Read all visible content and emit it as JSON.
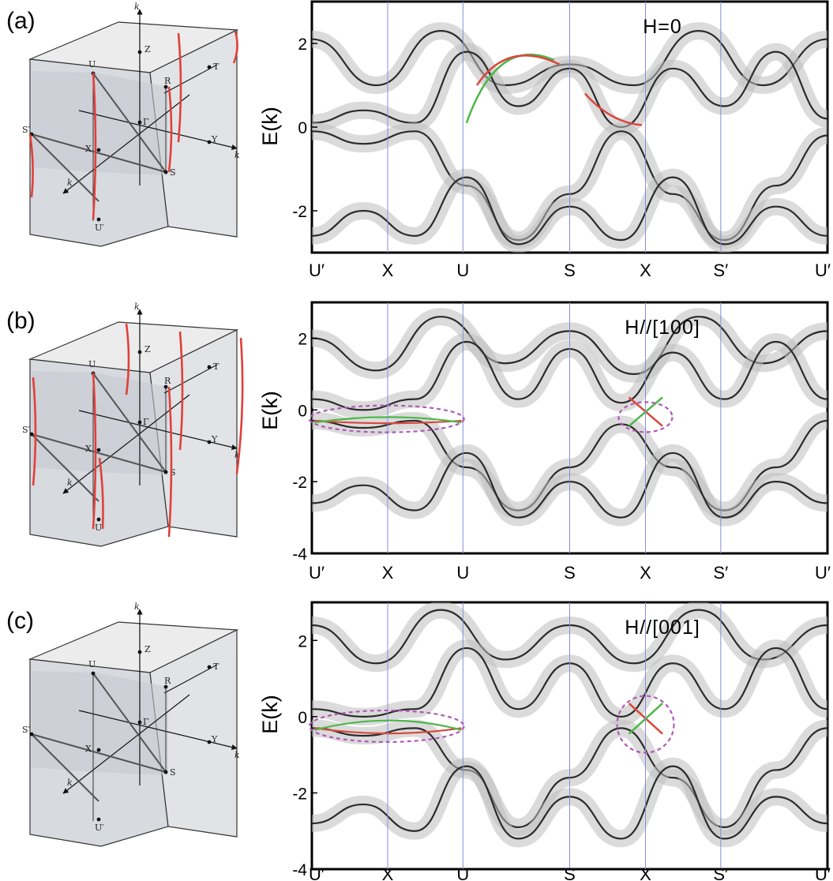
{
  "figure": {
    "kpath_labels": [
      "U′",
      "X",
      "U",
      "S",
      "X",
      "S′",
      "U′"
    ],
    "ylabel": "E(k)",
    "bz_points": {
      "kz": "k",
      "kz_sub": "z",
      "ky": "k",
      "ky_sub": "y",
      "kx": "k",
      "kx_sub": "x",
      "Z": "Z",
      "T": "T",
      "U": "U",
      "R": "R",
      "Gamma": "Γ",
      "Y": "Y",
      "Sp": "S′",
      "X": "X",
      "S": "S",
      "Up": "U′"
    },
    "colors": {
      "band": "#2b2b2b",
      "band_light": "#bdbdbd",
      "surface_red": "#d9473f",
      "surface_green": "#4cb848",
      "highlight_ellipse": "#b05ab8",
      "kline": "#8a8ad8",
      "fermi_red_line": "#e0403a"
    }
  },
  "panels": [
    {
      "id": "a",
      "label": "(a)",
      "field": "H=0",
      "y_ticks": [
        "2",
        "0",
        "-2"
      ],
      "chart_data": {
        "type": "line",
        "title": "H=0",
        "ylabel": "E(k)",
        "x_ticks": [
          "U′",
          "X",
          "U",
          "S",
          "X",
          "S′",
          "U′"
        ],
        "ylim": [
          -3,
          3
        ],
        "series": [
          {
            "values": [
              2.1,
              1.0,
              2.3,
              1.0,
              1.5,
              1.0,
              2.3,
              1.0,
              2.1
            ]
          },
          {
            "values": [
              0.1,
              0.4,
              0.1,
              1.8,
              0.5,
              1.4,
              0.0,
              1.4,
              0.5,
              1.8,
              0.2
            ]
          },
          {
            "values": [
              -0.1,
              -0.4,
              -0.1,
              -1.4,
              -2.7,
              -1.6,
              -0.1,
              -1.6,
              -2.7,
              -1.4,
              -0.2
            ]
          },
          {
            "values": [
              -2.6,
              -2.0,
              -2.6,
              -1.2,
              -2.8,
              -1.9,
              -2.7,
              -1.2,
              -2.8,
              -1.9,
              -2.6
            ]
          }
        ],
        "surface_states": [
          {
            "color": "red",
            "segment": "U–S"
          },
          {
            "color": "green",
            "segment": "S–X"
          }
        ]
      }
    },
    {
      "id": "b",
      "label": "(b)",
      "field": "H//[100]",
      "y_ticks": [
        "2",
        "0",
        "-2",
        "-4"
      ],
      "chart_data": {
        "type": "line",
        "title": "H//[100]",
        "ylabel": "E(k)",
        "x_ticks": [
          "U′",
          "X",
          "U",
          "S",
          "X",
          "S′",
          "U′"
        ],
        "ylim": [
          -4,
          3
        ],
        "series": [
          {
            "values": [
              2.0,
              1.1,
              2.6,
              1.3,
              2.2,
              1.0,
              2.6,
              1.3,
              2.2
            ]
          },
          {
            "values": [
              0.3,
              0.0,
              0.3,
              1.9,
              0.3,
              1.7,
              0.2,
              1.6,
              0.3,
              1.9,
              0.3
            ]
          },
          {
            "values": [
              -0.3,
              -0.5,
              -0.3,
              -1.6,
              -2.8,
              -1.6,
              -0.4,
              -1.6,
              -2.8,
              -1.6,
              -0.3
            ]
          },
          {
            "values": [
              -2.6,
              -2.1,
              -2.8,
              -1.2,
              -3.0,
              -2.0,
              -3.0,
              -1.2,
              -3.0,
              -2.0,
              -2.6
            ]
          }
        ],
        "surface_states": [
          {
            "color": "red",
            "segment": "U′–U"
          },
          {
            "color": "green",
            "segment": "U′–U"
          },
          {
            "color": "red",
            "segment": "near X"
          },
          {
            "color": "green",
            "segment": "near X"
          }
        ]
      }
    },
    {
      "id": "c",
      "label": "(c)",
      "field": "H//[001]",
      "y_ticks": [
        "2",
        "0",
        "-2",
        "-4"
      ],
      "chart_data": {
        "type": "line",
        "title": "H//[001]",
        "ylabel": "E(k)",
        "x_ticks": [
          "U′",
          "X",
          "U",
          "S",
          "X",
          "S′",
          "U′"
        ],
        "ylim": [
          -4,
          3
        ],
        "series": [
          {
            "values": [
              2.4,
              1.4,
              2.8,
              1.5,
              2.4,
              1.4,
              2.8,
              1.5,
              2.4
            ]
          },
          {
            "values": [
              0.2,
              0.0,
              0.2,
              1.8,
              0.2,
              1.4,
              0.0,
              1.4,
              0.2,
              1.8,
              0.2
            ]
          },
          {
            "values": [
              -0.3,
              -0.5,
              -0.3,
              -1.4,
              -2.9,
              -1.6,
              -0.3,
              -1.6,
              -2.9,
              -1.4,
              -0.3
            ]
          },
          {
            "values": [
              -2.8,
              -2.3,
              -3.0,
              -1.3,
              -3.2,
              -2.1,
              -3.2,
              -1.3,
              -3.2,
              -2.1,
              -2.8
            ]
          }
        ],
        "surface_states": [
          {
            "color": "red",
            "segment": "U′–U"
          },
          {
            "color": "green",
            "segment": "U′–U"
          },
          {
            "color": "red",
            "segment": "near X"
          },
          {
            "color": "green",
            "segment": "near X"
          }
        ]
      }
    }
  ]
}
